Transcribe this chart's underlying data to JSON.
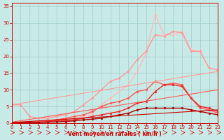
{
  "background_color": "#c8eae6",
  "grid_color": "#a0cccc",
  "xlabel": "Vent moyen/en rafales ( km/h )",
  "xlabel_color": "#cc0000",
  "tick_color": "#cc0000",
  "xlim": [
    0,
    23
  ],
  "ylim": [
    0,
    36
  ],
  "yticks": [
    0,
    5,
    10,
    15,
    20,
    25,
    30,
    35
  ],
  "xticks": [
    0,
    1,
    2,
    3,
    4,
    5,
    6,
    7,
    8,
    9,
    10,
    11,
    12,
    13,
    14,
    15,
    16,
    17,
    18,
    19,
    20,
    21,
    22,
    23
  ],
  "lines": [
    {
      "x": [
        0,
        1,
        2,
        3,
        4,
        5,
        6,
        7,
        8,
        9,
        10,
        11,
        12,
        13,
        14,
        15,
        16,
        17,
        18,
        19,
        20,
        21,
        22,
        23
      ],
      "y": [
        0.3,
        0.3,
        0.5,
        0.5,
        0.5,
        0.7,
        1.0,
        1.5,
        2.0,
        3.0,
        5.5,
        7.5,
        9.5,
        11.5,
        15.5,
        21.0,
        32.5,
        26.5,
        26.5,
        27.5,
        22.0,
        21.5,
        16.5,
        16.0
      ],
      "color": "#ffbbbb",
      "linewidth": 1.0,
      "marker": "o",
      "markersize": 2.0
    },
    {
      "x": [
        0,
        1,
        2,
        3,
        4,
        5,
        6,
        7,
        8,
        9,
        10,
        11,
        12,
        13,
        14,
        15,
        16,
        17,
        18,
        19,
        20,
        21,
        22,
        23
      ],
      "y": [
        5.5,
        5.5,
        2.0,
        1.5,
        1.5,
        2.0,
        2.5,
        3.5,
        5.5,
        7.5,
        10.0,
        12.5,
        13.5,
        15.5,
        19.0,
        21.5,
        26.5,
        26.0,
        27.5,
        27.0,
        21.5,
        21.5,
        16.5,
        16.0
      ],
      "color": "#ff9999",
      "linewidth": 1.0,
      "marker": "o",
      "markersize": 2.0
    },
    {
      "x": [
        0,
        1,
        2,
        3,
        4,
        5,
        6,
        7,
        8,
        9,
        10,
        11,
        12,
        13,
        14,
        15,
        16,
        17,
        18,
        19,
        20,
        21,
        22,
        23
      ],
      "y": [
        0.2,
        0.2,
        0.3,
        0.5,
        0.7,
        1.0,
        1.5,
        2.0,
        2.5,
        3.5,
        5.0,
        6.0,
        6.5,
        7.5,
        9.5,
        10.0,
        12.5,
        11.5,
        12.0,
        11.5,
        7.5,
        4.5,
        4.0,
        3.0
      ],
      "color": "#ff5555",
      "linewidth": 1.0,
      "marker": "o",
      "markersize": 2.0
    },
    {
      "x": [
        0,
        1,
        2,
        3,
        4,
        5,
        6,
        7,
        8,
        9,
        10,
        11,
        12,
        13,
        14,
        15,
        16,
        17,
        18,
        19,
        20,
        21,
        22,
        23
      ],
      "y": [
        0.2,
        0.2,
        0.2,
        0.3,
        0.5,
        0.7,
        0.8,
        1.0,
        1.5,
        2.0,
        2.5,
        3.0,
        3.5,
        4.5,
        6.0,
        6.5,
        9.5,
        11.5,
        11.5,
        11.0,
        7.5,
        5.0,
        4.5,
        3.5
      ],
      "color": "#ee2222",
      "linewidth": 1.0,
      "marker": "o",
      "markersize": 2.0
    },
    {
      "x": [
        0,
        1,
        2,
        3,
        4,
        5,
        6,
        7,
        8,
        9,
        10,
        11,
        12,
        13,
        14,
        15,
        16,
        17,
        18,
        19,
        20,
        21,
        22,
        23
      ],
      "y": [
        0.2,
        0.2,
        0.2,
        0.2,
        0.3,
        0.4,
        0.5,
        0.7,
        1.0,
        1.2,
        1.5,
        2.0,
        2.5,
        3.0,
        4.0,
        4.5,
        4.5,
        4.5,
        4.5,
        4.5,
        4.0,
        3.5,
        3.0,
        2.5
      ],
      "color": "#aa0000",
      "linewidth": 1.0,
      "marker": "o",
      "markersize": 2.0
    },
    {
      "x": [
        0,
        23
      ],
      "y": [
        5.5,
        15.5
      ],
      "color": "#ff9999",
      "linewidth": 0.8,
      "marker": null,
      "markersize": 0
    },
    {
      "x": [
        0,
        23
      ],
      "y": [
        0.3,
        10.0
      ],
      "color": "#ff5555",
      "linewidth": 0.8,
      "marker": null,
      "markersize": 0
    },
    {
      "x": [
        0,
        23
      ],
      "y": [
        0.2,
        4.0
      ],
      "color": "#cc0000",
      "linewidth": 0.8,
      "marker": null,
      "markersize": 0
    }
  ],
  "arrows": {
    "y_data": -2.8,
    "color": "#cc0000",
    "count": 24
  }
}
